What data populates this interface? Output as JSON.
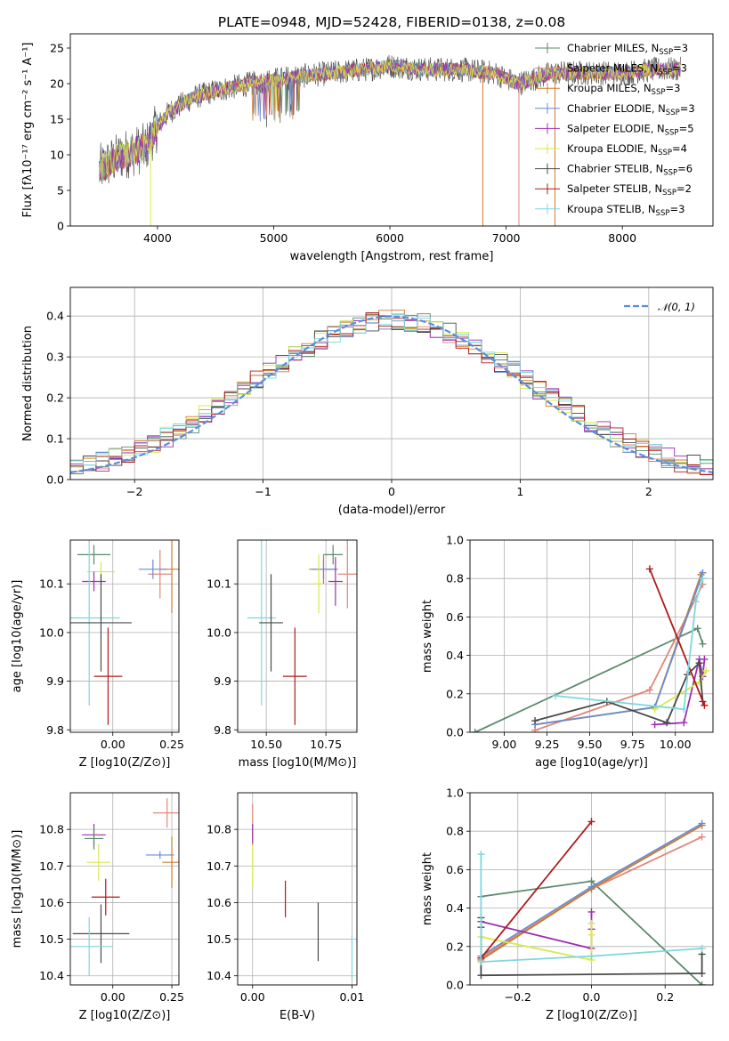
{
  "figure": {
    "title": "PLATE=0948, MJD=52428, FIBERID=0138, z=0.08"
  },
  "chart_data": [
    {
      "id": "spectrum",
      "type": "line",
      "title": "PLATE=0948, MJD=52428, FIBERID=0138, z=0.08",
      "xlabel": "wavelength [Angstrom, rest frame]",
      "ylabel": "Flux [f",
      "ylabel_html": "Flux [fλ10⁻¹⁷ erg cm⁻² s⁻¹ A⁻¹]",
      "xlim": [
        3250,
        8780
      ],
      "ylim": [
        0,
        27
      ],
      "xticks": [
        4000,
        5000,
        6000,
        7000,
        8000
      ],
      "yticks": [
        0,
        5,
        10,
        15,
        20,
        25
      ],
      "grid": false,
      "legend_position": "top-right",
      "legend": [
        {
          "label": "Chabrier MILES, N",
          "sub": "SSP",
          "suffix": "=3",
          "color": "#5b8a6b"
        },
        {
          "label": "Salpeter MILES, N",
          "sub": "SSP",
          "suffix": "=3",
          "color": "#e0877a"
        },
        {
          "label": "Kroupa MILES, N",
          "sub": "SSP",
          "suffix": "=3",
          "color": "#d07a2a"
        },
        {
          "label": "Chabrier ELODIE, N",
          "sub": "SSP",
          "suffix": "=3",
          "color": "#6a8ccf"
        },
        {
          "label": "Salpeter ELODIE, N",
          "sub": "SSP",
          "suffix": "=5",
          "color": "#9a2fb0"
        },
        {
          "label": "Kroupa ELODIE, N",
          "sub": "SSP",
          "suffix": "=4",
          "color": "#d8e84a"
        },
        {
          "label": "Chabrier STELIB, N",
          "sub": "SSP",
          "suffix": "=6",
          "color": "#4a4a4a"
        },
        {
          "label": "Salpeter STELIB, N",
          "sub": "SSP",
          "suffix": "=2",
          "color": "#b01a1a"
        },
        {
          "label": "Kroupa STELIB, N",
          "sub": "SSP",
          "suffix": "=3",
          "color": "#7fd6dc"
        }
      ],
      "continuum": {
        "x": [
          3500,
          3700,
          3900,
          4000,
          4100,
          4300,
          4500,
          4800,
          5000,
          5200,
          5500,
          5800,
          6000,
          6300,
          6600,
          6900,
          7100,
          7400,
          7700,
          8000,
          8300,
          8500
        ],
        "y": [
          8,
          10,
          11,
          14,
          16,
          18,
          19,
          20,
          20.5,
          21,
          21.5,
          22,
          22.5,
          22,
          22,
          21.5,
          20,
          21.5,
          21.5,
          21.5,
          22,
          22
        ]
      },
      "drops": [
        {
          "x": 3940,
          "y": 0,
          "color": "#d8e84a"
        },
        {
          "x": 6800,
          "y": 0,
          "color": "#d07a2a"
        },
        {
          "x": 7110,
          "y": 0,
          "color": "#e0877a"
        },
        {
          "x": 7420,
          "y": 0,
          "color": "#d07a2a"
        }
      ]
    },
    {
      "id": "residuals",
      "type": "bar",
      "xlabel": "(data-model)/error",
      "ylabel": "Normed distribution",
      "xlim": [
        -2.5,
        2.5
      ],
      "ylim": [
        0,
        0.47
      ],
      "xticks": [
        -2,
        -1,
        0,
        1,
        2
      ],
      "yticks": [
        0.0,
        0.1,
        0.2,
        0.3,
        0.4
      ],
      "grid": true,
      "legend_position": "top-right",
      "legend_label": "𝒩(0, 1)",
      "gaussian_color": "#5b8ee0",
      "bin_width": 0.1,
      "bin_start": -2.5,
      "series_colors": [
        "#5b8a6b",
        "#e0877a",
        "#d07a2a",
        "#6a8ccf",
        "#9a2fb0",
        "#d8e84a",
        "#4a4a4a",
        "#b01a1a",
        "#7fd6dc"
      ]
    },
    {
      "id": "age-vs-z",
      "type": "scatter",
      "xlabel": "Z [log10(Z/Z⊙)]",
      "ylabel": "age  [log10(age/yr)]",
      "xlim": [
        -0.18,
        0.28
      ],
      "ylim": [
        9.795,
        10.19
      ],
      "xticks": [
        0.0,
        0.25
      ],
      "yticks": [
        9.8,
        9.9,
        10.0,
        10.1
      ],
      "grid": true,
      "points": [
        {
          "x": -0.08,
          "y": 10.16,
          "xerr": 0.07,
          "yerr": 0.02,
          "color": "#5b8a6b"
        },
        {
          "x": -0.05,
          "y": 10.125,
          "xerr": 0.06,
          "yerr": 0.02,
          "color": "#d8e84a"
        },
        {
          "x": -0.08,
          "y": 10.105,
          "xerr": 0.05,
          "yerr": 0.02,
          "color": "#9a2fb0"
        },
        {
          "x": 0.2,
          "y": 10.12,
          "xerr": 0.05,
          "yerr": 0.05,
          "color": "#e0877a"
        },
        {
          "x": 0.25,
          "y": 10.13,
          "xerr": 0.05,
          "yerr": 0.09,
          "color": "#d07a2a"
        },
        {
          "x": 0.17,
          "y": 10.13,
          "xerr": 0.06,
          "yerr": 0.02,
          "color": "#6a8ccf"
        },
        {
          "x": -0.1,
          "y": 10.03,
          "xerr": 0.13,
          "yerr": 0.18,
          "color": "#7fd6dc"
        },
        {
          "x": -0.05,
          "y": 10.02,
          "xerr": 0.13,
          "yerr": 0.1,
          "color": "#4a4a4a"
        },
        {
          "x": -0.02,
          "y": 9.91,
          "xerr": 0.06,
          "yerr": 0.1,
          "color": "#b01a1a"
        }
      ]
    },
    {
      "id": "age-vs-mass",
      "type": "scatter",
      "xlabel": "mass [log10(M/M⊙)]",
      "ylabel": "",
      "xlim": [
        10.38,
        10.88
      ],
      "ylim": [
        9.795,
        10.19
      ],
      "xticks": [
        10.5,
        10.75
      ],
      "yticks": [
        9.8,
        9.9,
        10.0,
        10.1
      ],
      "grid": true,
      "points": [
        {
          "x": 10.78,
          "y": 10.16,
          "xerr": 0.04,
          "yerr": 0.02,
          "color": "#5b8a6b"
        },
        {
          "x": 10.84,
          "y": 10.12,
          "xerr": 0.04,
          "yerr": 0.07,
          "color": "#e0877a"
        },
        {
          "x": 10.74,
          "y": 10.13,
          "xerr": 0.06,
          "yerr": 0.03,
          "color": "#d07a2a"
        },
        {
          "x": 10.74,
          "y": 10.13,
          "xerr": 0.05,
          "yerr": 0.02,
          "color": "#6a8ccf"
        },
        {
          "x": 10.79,
          "y": 10.105,
          "xerr": 0.03,
          "yerr": 0.05,
          "color": "#9a2fb0"
        },
        {
          "x": 10.72,
          "y": 10.1,
          "xerr": 0.02,
          "yerr": 0.06,
          "color": "#d8e84a"
        },
        {
          "x": 10.48,
          "y": 10.03,
          "xerr": 0.06,
          "yerr": 0.18,
          "color": "#7fd6dc"
        },
        {
          "x": 10.52,
          "y": 10.02,
          "xerr": 0.05,
          "yerr": 0.1,
          "color": "#4a4a4a"
        },
        {
          "x": 10.62,
          "y": 9.91,
          "xerr": 0.05,
          "yerr": 0.1,
          "color": "#b01a1a"
        }
      ]
    },
    {
      "id": "mass-weight-vs-age",
      "type": "line",
      "xlabel": "age  [log10(age/yr)]",
      "ylabel": "mass weight",
      "xlim": [
        8.8,
        10.22
      ],
      "ylim": [
        0,
        1
      ],
      "xticks": [
        9.0,
        9.25,
        9.5,
        9.75,
        10.0
      ],
      "yticks": [
        0.0,
        0.2,
        0.4,
        0.6,
        0.8,
        1.0
      ],
      "grid": true,
      "series": [
        {
          "color": "#5b8a6b",
          "x": [
            8.83,
            10.13,
            10.16
          ],
          "y": [
            0.0,
            0.54,
            0.46
          ]
        },
        {
          "color": "#e0877a",
          "x": [
            9.18,
            9.85,
            10.16
          ],
          "y": [
            0.01,
            0.22,
            0.77
          ]
        },
        {
          "color": "#d07a2a",
          "x": [
            9.18,
            9.88,
            10.15
          ],
          "y": [
            0.04,
            0.13,
            0.82
          ]
        },
        {
          "color": "#6a8ccf",
          "x": [
            9.18,
            9.88,
            10.16
          ],
          "y": [
            0.04,
            0.13,
            0.83
          ]
        },
        {
          "color": "#9a2fb0",
          "x": [
            9.88,
            10.05,
            10.14,
            10.16,
            10.17
          ],
          "y": [
            0.04,
            0.05,
            0.38,
            0.29,
            0.38
          ]
        },
        {
          "color": "#d8e84a",
          "x": [
            9.88,
            10.14,
            10.18
          ],
          "y": [
            0.12,
            0.26,
            0.32
          ]
        },
        {
          "color": "#4a4a4a",
          "x": [
            9.18,
            9.6,
            9.95,
            10.07,
            10.14,
            10.16
          ],
          "y": [
            0.06,
            0.16,
            0.05,
            0.3,
            0.36,
            0.16
          ]
        },
        {
          "color": "#b01a1a",
          "x": [
            9.85,
            10.17
          ],
          "y": [
            0.85,
            0.14
          ]
        },
        {
          "color": "#7fd6dc",
          "x": [
            9.3,
            10.05,
            10.12,
            10.16
          ],
          "y": [
            0.19,
            0.12,
            0.68,
            0.8
          ]
        }
      ]
    },
    {
      "id": "mass-vs-z",
      "type": "scatter",
      "xlabel": "Z [log10(Z/Z⊙)]",
      "ylabel": "mass [log10(M/M⊙)]",
      "xlim": [
        -0.18,
        0.28
      ],
      "ylim": [
        10.375,
        10.9
      ],
      "xticks": [
        0.0,
        0.25
      ],
      "yticks": [
        10.4,
        10.5,
        10.6,
        10.7,
        10.8
      ],
      "grid": true,
      "points": [
        {
          "x": 0.23,
          "y": 10.845,
          "xerr": 0.06,
          "yerr": 0.04,
          "color": "#e0877a"
        },
        {
          "x": -0.08,
          "y": 10.785,
          "xerr": 0.05,
          "yerr": 0.03,
          "color": "#9a2fb0"
        },
        {
          "x": -0.08,
          "y": 10.775,
          "xerr": 0.04,
          "yerr": 0.03,
          "color": "#5b8a6b"
        },
        {
          "x": 0.2,
          "y": 10.73,
          "xerr": 0.06,
          "yerr": 0.01,
          "color": "#6a8ccf"
        },
        {
          "x": 0.25,
          "y": 10.71,
          "xerr": 0.04,
          "yerr": 0.07,
          "color": "#d07a2a"
        },
        {
          "x": -0.06,
          "y": 10.71,
          "xerr": 0.05,
          "yerr": 0.05,
          "color": "#d8e84a"
        },
        {
          "x": -0.03,
          "y": 10.615,
          "xerr": 0.06,
          "yerr": 0.05,
          "color": "#b01a1a"
        },
        {
          "x": -0.05,
          "y": 10.515,
          "xerr": 0.12,
          "yerr": 0.08,
          "color": "#4a4a4a"
        },
        {
          "x": -0.1,
          "y": 10.48,
          "xerr": 0.1,
          "yerr": 0.08,
          "color": "#7fd6dc"
        }
      ]
    },
    {
      "id": "mass-vs-ebv",
      "type": "scatter",
      "xlabel": "E(B-V)",
      "ylabel": "",
      "xlim": [
        -0.0015,
        0.0105
      ],
      "ylim": [
        10.375,
        10.9
      ],
      "xticks": [
        0.0,
        0.01
      ],
      "xtick_labels": [
        "0.00",
        "0.01"
      ],
      "yticks": [
        10.4,
        10.5,
        10.6,
        10.7,
        10.8
      ],
      "grid": true,
      "points": [
        {
          "x": 0.0,
          "y": 10.82,
          "xerr": 0,
          "yerr": 0.05,
          "color": "#e0877a"
        },
        {
          "x": 0.0,
          "y": 10.785,
          "xerr": 0,
          "yerr": 0.03,
          "color": "#9a2fb0"
        },
        {
          "x": 0.0,
          "y": 10.7,
          "xerr": 0,
          "yerr": 0.06,
          "color": "#d8e84a"
        },
        {
          "x": 0.0033,
          "y": 10.61,
          "xerr": 0,
          "yerr": 0.05,
          "color": "#b01a1a"
        },
        {
          "x": 0.0066,
          "y": 10.52,
          "xerr": 0,
          "yerr": 0.08,
          "color": "#4a4a4a"
        },
        {
          "x": 0.01,
          "y": 10.45,
          "xerr": 0,
          "yerr": 0.06,
          "color": "#7fd6dc"
        }
      ]
    },
    {
      "id": "mass-weight-vs-z",
      "type": "line",
      "xlabel": "Z [log10(Z/Z⊙)]",
      "ylabel": "mass weight",
      "xlim": [
        -0.33,
        0.33
      ],
      "ylim": [
        0,
        1
      ],
      "xticks": [
        -0.2,
        0.0,
        0.2
      ],
      "xtick_labels": [
        "−0.2",
        "0.0",
        "0.2"
      ],
      "yticks": [
        0.0,
        0.2,
        0.4,
        0.6,
        0.8,
        1.0
      ],
      "grid": true,
      "series": [
        {
          "color": "#5b8a6b",
          "x": [
            -0.3,
            0.0,
            0.3
          ],
          "y": [
            0.46,
            0.54,
            0.0
          ]
        },
        {
          "color": "#e0877a",
          "x": [
            -0.3,
            0.0,
            0.3
          ],
          "y": [
            0.14,
            0.5,
            0.77
          ]
        },
        {
          "color": "#d07a2a",
          "x": [
            -0.3,
            0.0,
            0.3
          ],
          "y": [
            0.13,
            0.5,
            0.83
          ]
        },
        {
          "color": "#6a8ccf",
          "x": [
            -0.3,
            0.0,
            0.3
          ],
          "y": [
            0.15,
            0.51,
            0.84
          ]
        },
        {
          "color": "#9a2fb0",
          "x": [
            -0.3,
            0.0,
            0.0,
            0.0
          ],
          "y": [
            0.33,
            0.19,
            0.38,
            0.29
          ]
        },
        {
          "color": "#d8e84a",
          "x": [
            -0.3,
            0.0,
            0.0,
            0.0
          ],
          "y": [
            0.25,
            0.13,
            0.26,
            0.32
          ]
        },
        {
          "color": "#4a4a4a",
          "x": [
            -0.3,
            -0.3,
            -0.3,
            0.3,
            0.3
          ],
          "y": [
            0.35,
            0.3,
            0.05,
            0.06,
            0.16
          ]
        },
        {
          "color": "#b01a1a",
          "x": [
            -0.3,
            0.0
          ],
          "y": [
            0.14,
            0.85
          ]
        },
        {
          "color": "#7fd6dc",
          "x": [
            -0.3,
            -0.3,
            0.0,
            0.3
          ],
          "y": [
            0.68,
            0.12,
            0.15,
            0.19
          ]
        }
      ]
    }
  ]
}
